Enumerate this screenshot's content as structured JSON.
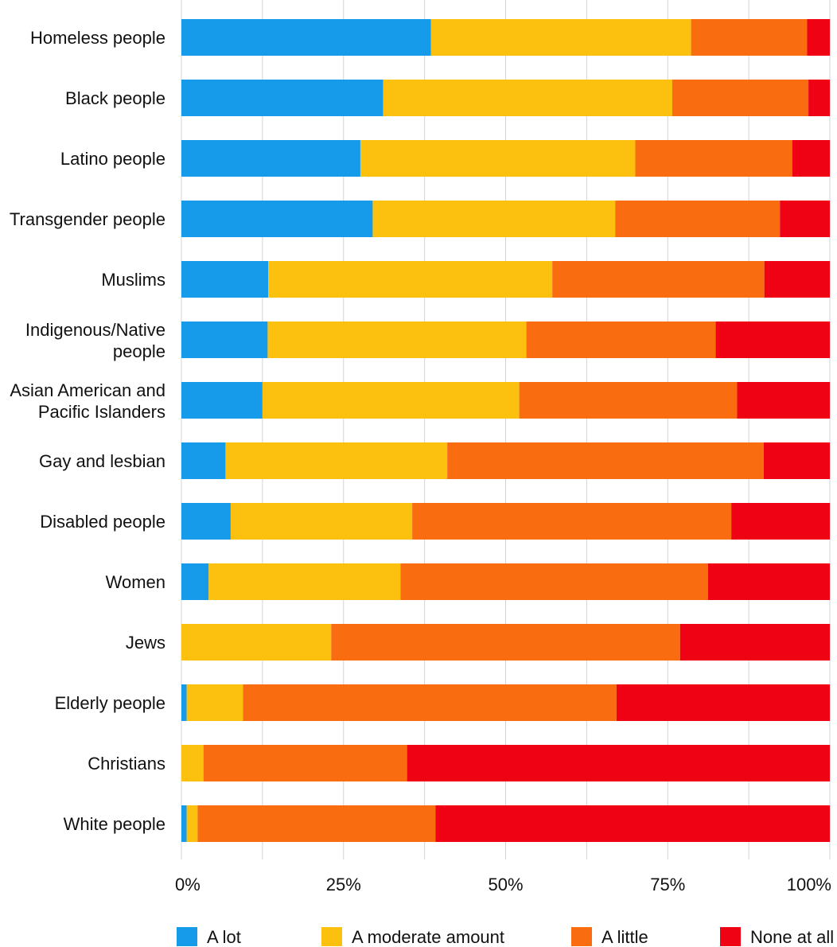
{
  "chart_data": {
    "type": "bar",
    "orientation": "horizontal",
    "stacked": true,
    "title": "",
    "xlabel": "",
    "ylabel": "",
    "xlim": [
      0,
      100
    ],
    "grid": true,
    "legend_position": "bottom",
    "x_ticks": [
      "0%",
      "25%",
      "50%",
      "75%",
      "100%"
    ],
    "categories": [
      [
        "Homeless people"
      ],
      [
        "Black people"
      ],
      [
        "Latino people"
      ],
      [
        "Transgender people"
      ],
      [
        "Muslims"
      ],
      [
        "Indigenous/Native",
        "people"
      ],
      [
        "Asian American and",
        "Pacific Islanders"
      ],
      [
        "Gay and lesbian"
      ],
      [
        "Disabled people"
      ],
      [
        "Women"
      ],
      [
        "Jews"
      ],
      [
        "Elderly people"
      ],
      [
        "Christians"
      ],
      [
        "White people"
      ]
    ],
    "series": [
      {
        "name": "A lot",
        "color": "#169BEB",
        "values": [
          38.5,
          31.1,
          27.6,
          29.5,
          13.4,
          13.3,
          12.5,
          6.8,
          7.6,
          4.2,
          0,
          0.8,
          0,
          0.8
        ]
      },
      {
        "name": "A moderate amount",
        "color": "#FCC00E",
        "values": [
          40.1,
          44.6,
          42.4,
          37.4,
          43.8,
          39.9,
          39.6,
          34.2,
          28.0,
          29.6,
          23.1,
          8.7,
          3.4,
          1.7
        ]
      },
      {
        "name": "A little",
        "color": "#FA6C10",
        "values": [
          17.9,
          21.0,
          24.2,
          25.4,
          32.7,
          29.2,
          33.6,
          48.8,
          49.2,
          47.4,
          53.8,
          57.6,
          31.4,
          36.7
        ]
      },
      {
        "name": "None at all",
        "color": "#EE0214",
        "values": [
          3.5,
          3.3,
          5.8,
          7.7,
          10.1,
          17.6,
          14.3,
          10.2,
          15.2,
          18.8,
          23.1,
          32.9,
          65.2,
          60.8
        ]
      }
    ]
  }
}
